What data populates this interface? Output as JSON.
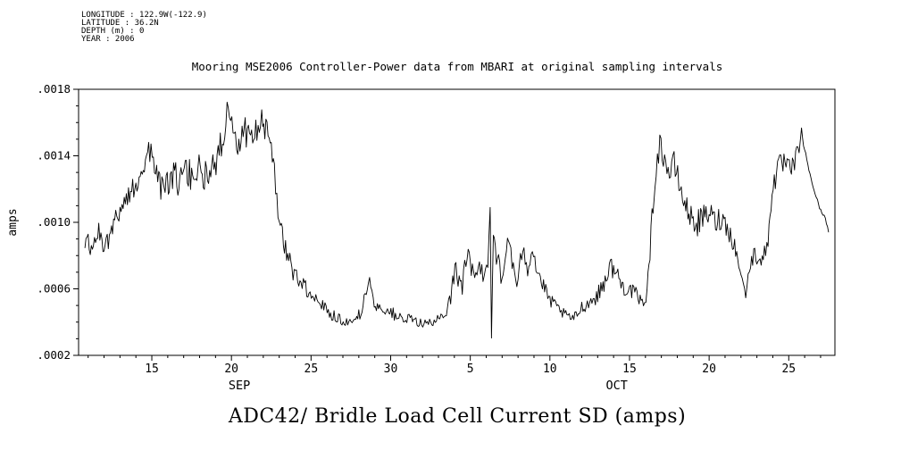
{
  "meta": {
    "lines": [
      "LONGITUDE : 122.9W(-122.9)",
      "LATITUDE : 36.2N",
      "DEPTH (m) : 0",
      "YEAR : 2006"
    ]
  },
  "title": "Mooring MSE2006 Controller-Power data from MBARI at original sampling intervals",
  "footer_title": "ADC42/ Bridle Load Cell Current SD (amps)",
  "colors": {
    "line": "#000000",
    "axis": "#000000",
    "background": "#ffffff"
  },
  "chart_data": {
    "type": "line",
    "title": "Mooring MSE2006 Controller-Power data from MBARI at original sampling intervals",
    "bottom_title": "ADC42/ Bridle Load Cell Current SD (amps)",
    "ylabel": "amps",
    "x_unit": "day (Sep days 11-30 as 11-30, Oct day d as 30+d), year 2006",
    "xlim": [
      10.4,
      57.9
    ],
    "ylim": [
      0.0002,
      0.0018
    ],
    "yticks": [
      0.0002,
      0.0006,
      0.001,
      0.0014,
      0.0018
    ],
    "ytick_labels": [
      ".0002",
      ".0006",
      ".0010",
      ".0014",
      ".0018"
    ],
    "xticks": [
      15,
      20,
      25,
      30,
      35,
      40,
      45,
      50,
      55
    ],
    "xtick_labels": [
      "15",
      "20",
      "25",
      "30",
      "5",
      "10",
      "15",
      "20",
      "25"
    ],
    "month_labels": [
      {
        "label": "SEP",
        "x": 20.5
      },
      {
        "label": "OCT",
        "x": 44.2
      }
    ],
    "legend": "none",
    "grid": false,
    "series_name": "Bridle Load Cell Current SD",
    "points": [
      [
        10.8,
        0.0009,
        7e-05
      ],
      [
        11.2,
        0.00083,
        6e-05
      ],
      [
        11.6,
        0.00094,
        7e-05
      ],
      [
        12.0,
        0.00087,
        6e-05
      ],
      [
        12.4,
        0.00092,
        7e-05
      ],
      [
        12.8,
        0.00104,
        7e-05
      ],
      [
        13.2,
        0.00112,
        7e-05
      ],
      [
        13.6,
        0.00116,
        6e-05
      ],
      [
        14.0,
        0.00124,
        8e-05
      ],
      [
        14.4,
        0.00134,
        9e-05
      ],
      [
        14.8,
        0.00143,
        8e-05
      ],
      [
        15.1,
        0.00136,
        9e-05
      ],
      [
        15.5,
        0.00124,
        0.0001
      ],
      [
        15.9,
        0.0012,
        9e-05
      ],
      [
        16.3,
        0.00128,
        0.0001
      ],
      [
        16.7,
        0.00124,
        0.00011
      ],
      [
        17.1,
        0.0013,
        0.0001
      ],
      [
        17.5,
        0.00127,
        0.00011
      ],
      [
        17.9,
        0.00132,
        0.00011
      ],
      [
        18.3,
        0.00128,
        0.0001
      ],
      [
        18.7,
        0.00133,
        0.0001
      ],
      [
        19.1,
        0.00138,
        9e-05
      ],
      [
        19.5,
        0.00152,
        9e-05
      ],
      [
        19.8,
        0.00172,
        6e-05
      ],
      [
        20.1,
        0.00158,
        9e-05
      ],
      [
        20.4,
        0.0015,
        0.0001
      ],
      [
        20.8,
        0.00155,
        9e-05
      ],
      [
        21.2,
        0.00149,
        9e-05
      ],
      [
        21.6,
        0.00157,
        9e-05
      ],
      [
        21.9,
        0.00162,
        7e-05
      ],
      [
        22.3,
        0.00152,
        8e-05
      ],
      [
        22.7,
        0.00128,
        9e-05
      ],
      [
        23.0,
        0.00103,
        8e-05
      ],
      [
        23.4,
        0.00084,
        7e-05
      ],
      [
        23.8,
        0.00072,
        6e-05
      ],
      [
        24.3,
        0.00065,
        6e-05
      ],
      [
        24.8,
        0.00059,
        5e-05
      ],
      [
        25.3,
        0.00055,
        5e-05
      ],
      [
        25.8,
        0.0005,
        4e-05
      ],
      [
        26.3,
        0.00045,
        4e-05
      ],
      [
        26.8,
        0.00042,
        4e-05
      ],
      [
        27.3,
        0.0004,
        3e-05
      ],
      [
        27.8,
        0.00041,
        3e-05
      ],
      [
        28.2,
        0.00047,
        4e-05
      ],
      [
        28.6,
        0.00066,
        5e-05
      ],
      [
        28.9,
        0.00052,
        4e-05
      ],
      [
        29.3,
        0.00049,
        4e-05
      ],
      [
        29.8,
        0.00047,
        4e-05
      ],
      [
        30.3,
        0.00044,
        4e-05
      ],
      [
        30.8,
        0.00041,
        3e-05
      ],
      [
        31.3,
        0.00042,
        3e-05
      ],
      [
        31.8,
        0.0004,
        3e-05
      ],
      [
        32.3,
        0.00039,
        3e-05
      ],
      [
        32.8,
        0.0004,
        3e-05
      ],
      [
        33.3,
        0.00043,
        4e-05
      ],
      [
        33.7,
        0.00054,
        6e-05
      ],
      [
        34.1,
        0.00072,
        8e-05
      ],
      [
        34.5,
        0.00061,
        8e-05
      ],
      [
        34.8,
        0.00082,
        9e-05
      ],
      [
        35.2,
        0.00066,
        8e-05
      ],
      [
        35.5,
        0.00076,
        8e-05
      ],
      [
        35.8,
        0.00066,
        7e-05
      ],
      [
        36.1,
        0.00078,
        8e-05
      ],
      [
        36.25,
        0.00112,
        4e-05
      ],
      [
        36.33,
        0.00031,
        2e-05
      ],
      [
        36.45,
        0.00094,
        5e-05
      ],
      [
        36.7,
        0.00078,
        9e-05
      ],
      [
        37.0,
        0.00062,
        6e-05
      ],
      [
        37.4,
        0.00094,
        8e-05
      ],
      [
        37.7,
        0.00071,
        7e-05
      ],
      [
        38.0,
        0.00061,
        6e-05
      ],
      [
        38.3,
        0.00089,
        9e-05
      ],
      [
        38.6,
        0.00074,
        8e-05
      ],
      [
        38.9,
        0.00086,
        8e-05
      ],
      [
        39.2,
        0.00071,
        6e-05
      ],
      [
        39.6,
        0.00061,
        5e-05
      ],
      [
        40.0,
        0.00053,
        4e-05
      ],
      [
        40.5,
        0.00048,
        4e-05
      ],
      [
        41.0,
        0.00044,
        3e-05
      ],
      [
        41.5,
        0.00042,
        3e-05
      ],
      [
        42.0,
        0.00049,
        4e-05
      ],
      [
        42.5,
        0.00052,
        4e-05
      ],
      [
        43.0,
        0.00056,
        5e-05
      ],
      [
        43.4,
        0.00064,
        6e-05
      ],
      [
        43.8,
        0.00074,
        6e-05
      ],
      [
        44.2,
        0.00069,
        6e-05
      ],
      [
        44.6,
        0.00061,
        5e-05
      ],
      [
        45.0,
        0.0006,
        5e-05
      ],
      [
        45.4,
        0.00056,
        5e-05
      ],
      [
        45.8,
        0.00051,
        4e-05
      ],
      [
        46.1,
        0.00058,
        5e-05
      ],
      [
        46.35,
        0.00092,
        7e-05
      ],
      [
        46.6,
        0.00128,
        8e-05
      ],
      [
        46.9,
        0.00147,
        7e-05
      ],
      [
        47.2,
        0.00139,
        9e-05
      ],
      [
        47.5,
        0.00129,
        8e-05
      ],
      [
        47.8,
        0.00135,
        8e-05
      ],
      [
        48.1,
        0.00124,
        8e-05
      ],
      [
        48.4,
        0.00113,
        7e-05
      ],
      [
        48.8,
        0.00104,
        7e-05
      ],
      [
        49.2,
        0.00099,
        8e-05
      ],
      [
        49.6,
        0.00102,
        8e-05
      ],
      [
        50.0,
        0.00106,
        8e-05
      ],
      [
        50.4,
        0.001,
        8e-05
      ],
      [
        50.8,
        0.00103,
        7e-05
      ],
      [
        51.2,
        0.00096,
        7e-05
      ],
      [
        51.6,
        0.00086,
        5e-05
      ],
      [
        52.0,
        0.00069,
        2e-05
      ],
      [
        52.3,
        0.00056,
        2e-05
      ],
      [
        52.6,
        0.00077,
        6e-05
      ],
      [
        53.0,
        0.00081,
        7e-05
      ],
      [
        53.4,
        0.00078,
        6e-05
      ],
      [
        53.7,
        0.00088,
        6e-05
      ],
      [
        53.95,
        0.00121,
        7e-05
      ],
      [
        54.3,
        0.00131,
        8e-05
      ],
      [
        54.7,
        0.00136,
        8e-05
      ],
      [
        55.1,
        0.0013,
        7e-05
      ],
      [
        55.5,
        0.00139,
        7e-05
      ],
      [
        55.8,
        0.00154,
        3e-05
      ],
      [
        56.2,
        0.00134,
        1e-05
      ],
      [
        56.6,
        0.00119,
        1e-05
      ],
      [
        57.0,
        0.00107,
        1e-05
      ],
      [
        57.3,
        0.00103,
        1e-05
      ],
      [
        57.5,
        0.00094,
        1e-05
      ]
    ]
  }
}
